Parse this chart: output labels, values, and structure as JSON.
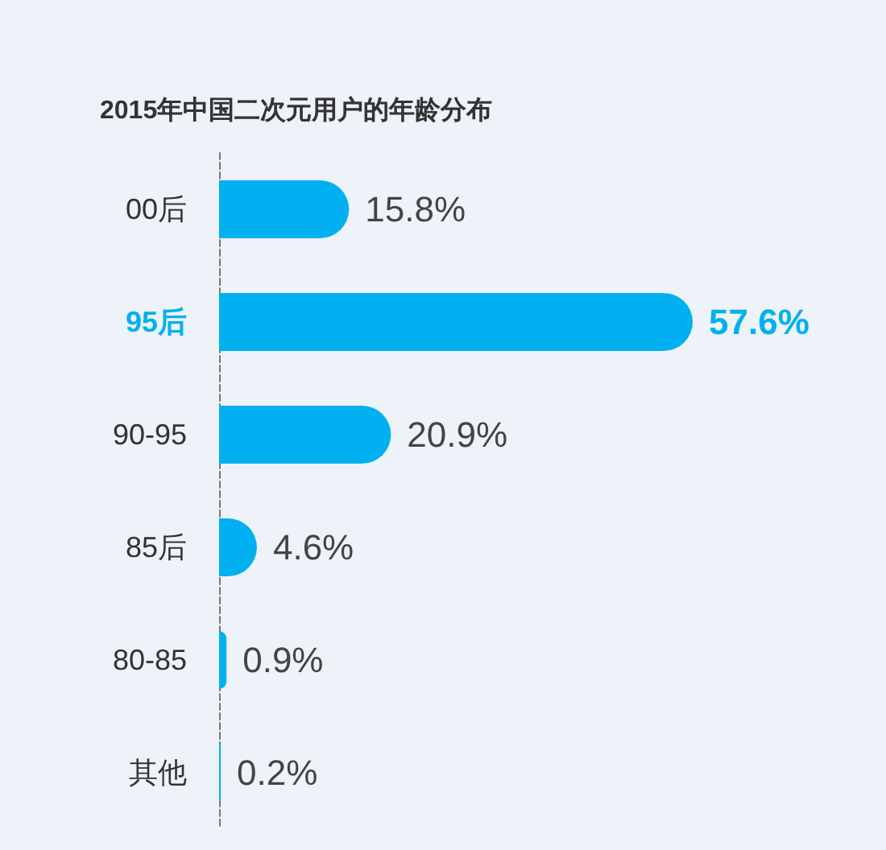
{
  "chart_data": {
    "type": "bar",
    "orientation": "horizontal",
    "title": "2015年中国二次元用户的年龄分布",
    "categories": [
      "00后",
      "95后",
      "90-95",
      "85后",
      "80-85",
      "其他"
    ],
    "values": [
      15.8,
      57.6,
      20.9,
      4.6,
      0.9,
      0.2
    ],
    "value_labels": [
      "15.8%",
      "57.6%",
      "20.9%",
      "4.6%",
      "0.9%",
      "0.2%"
    ],
    "color": "#00b0f0",
    "tick_labels": "y"
  }
}
